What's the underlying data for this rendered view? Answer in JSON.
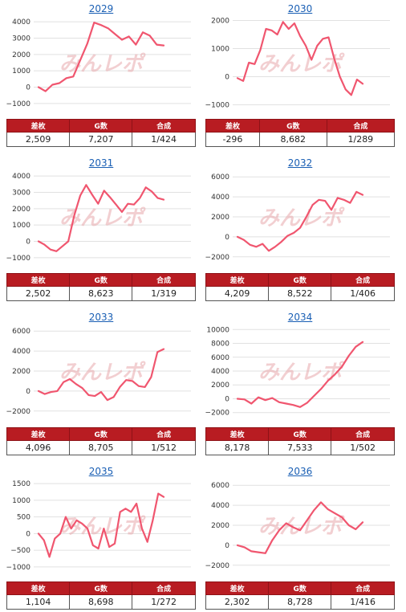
{
  "headers": {
    "sa": "差枚",
    "g": "G数",
    "gousei": "合成"
  },
  "watermark": "みんレポ",
  "colors": {
    "line": "#f0566f",
    "header_bg": "#b81c22"
  },
  "chart_data": [
    {
      "type": "line",
      "title": "2029",
      "yticks": [
        4000,
        3000,
        2000,
        1000,
        0,
        -1000
      ],
      "ylim": [
        -1250,
        4250
      ],
      "ytick_labels": [
        "4000",
        "3000",
        "2000",
        "1000",
        "0",
        "−1000"
      ],
      "values": [
        0,
        -250,
        150,
        250,
        550,
        650,
        1650,
        2650,
        3950,
        3800,
        3600,
        3250,
        2900,
        3100,
        2600,
        3350,
        3150,
        2600,
        2550
      ],
      "stats": {
        "sa": "2,509",
        "g": "7,207",
        "gousei": "1/424"
      }
    },
    {
      "type": "line",
      "title": "2030",
      "yticks": [
        2000,
        1000,
        0,
        -1000
      ],
      "ylim": [
        -1100,
        2100
      ],
      "ytick_labels": [
        "2000",
        "1000",
        "0",
        "−1000"
      ],
      "values": [
        -50,
        -150,
        500,
        450,
        950,
        1700,
        1650,
        1500,
        1950,
        1700,
        1900,
        1450,
        1100,
        600,
        1100,
        1350,
        1400,
        650,
        0,
        -450,
        -650,
        -100,
        -250
      ],
      "stats": {
        "sa": "-296",
        "g": "8,682",
        "gousei": "1/289"
      }
    },
    {
      "type": "line",
      "title": "2031",
      "yticks": [
        4000,
        3000,
        2000,
        1000,
        0,
        -1000
      ],
      "ylim": [
        -1250,
        4250
      ],
      "ytick_labels": [
        "4000",
        "3000",
        "2000",
        "1000",
        "0",
        "−1000"
      ],
      "values": [
        0,
        -200,
        -500,
        -600,
        -300,
        0,
        1600,
        2800,
        3450,
        2850,
        2300,
        3100,
        2700,
        2250,
        1800,
        2300,
        2250,
        2650,
        3300,
        3050,
        2650,
        2550
      ],
      "stats": {
        "sa": "2,502",
        "g": "8,623",
        "gousei": "1/319"
      }
    },
    {
      "type": "line",
      "title": "2032",
      "yticks": [
        6000,
        4000,
        2000,
        0,
        -2000
      ],
      "ylim": [
        -2500,
        6500
      ],
      "ytick_labels": [
        "6000",
        "4000",
        "2000",
        "0",
        "−2000"
      ],
      "values": [
        0,
        -300,
        -800,
        -1000,
        -700,
        -1400,
        -1000,
        -500,
        100,
        400,
        900,
        2000,
        3200,
        3700,
        3600,
        2700,
        3900,
        3700,
        3400,
        4500,
        4200
      ],
      "stats": {
        "sa": "4,209",
        "g": "8,522",
        "gousei": "1/406"
      }
    },
    {
      "type": "line",
      "title": "2033",
      "yticks": [
        6000,
        4000,
        2000,
        0,
        -2000
      ],
      "ylim": [
        -2500,
        6500
      ],
      "ytick_labels": [
        "6000",
        "4000",
        "2000",
        "0",
        "−2000"
      ],
      "values": [
        0,
        -300,
        -100,
        0,
        900,
        1200,
        700,
        300,
        -400,
        -500,
        -100,
        -900,
        -600,
        400,
        1100,
        1000,
        500,
        400,
        1400,
        3900,
        4200
      ],
      "stats": {
        "sa": "4,096",
        "g": "8,705",
        "gousei": "1/512"
      }
    },
    {
      "type": "line",
      "title": "2034",
      "yticks": [
        10000,
        8000,
        6000,
        4000,
        2000,
        0,
        -2000
      ],
      "ylim": [
        -2500,
        10500
      ],
      "ytick_labels": [
        "10000",
        "8000",
        "6000",
        "4000",
        "2000",
        "0",
        "−2000"
      ],
      "values": [
        0,
        -100,
        -700,
        200,
        -200,
        100,
        -500,
        -700,
        -900,
        -1200,
        -600,
        400,
        1400,
        2600,
        3500,
        4600,
        6200,
        7500,
        8200
      ],
      "stats": {
        "sa": "8,178",
        "g": "7,533",
        "gousei": "1/502"
      }
    },
    {
      "type": "line",
      "title": "2035",
      "yticks": [
        1500,
        1000,
        500,
        0,
        -500,
        -1000
      ],
      "ylim": [
        -1100,
        1600
      ],
      "ytick_labels": [
        "1500",
        "1000",
        "500",
        "0",
        "−500",
        "−1000"
      ],
      "values": [
        0,
        -200,
        -700,
        -150,
        0,
        500,
        150,
        400,
        300,
        150,
        -350,
        -450,
        150,
        -400,
        -300,
        650,
        750,
        650,
        900,
        150,
        -250,
        400,
        1200,
        1100
      ],
      "stats": {
        "sa": "1,104",
        "g": "8,698",
        "gousei": "1/272"
      }
    },
    {
      "type": "line",
      "title": "2036",
      "yticks": [
        6000,
        4000,
        2000,
        0,
        -2000
      ],
      "ylim": [
        -2500,
        6500
      ],
      "ytick_labels": [
        "6000",
        "4000",
        "2000",
        "0",
        "−2000"
      ],
      "values": [
        0,
        -200,
        -600,
        -700,
        -800,
        500,
        1500,
        2200,
        1800,
        1500,
        2500,
        3500,
        4300,
        3600,
        3200,
        2800,
        2000,
        1600,
        2300
      ],
      "stats": {
        "sa": "2,302",
        "g": "8,728",
        "gousei": "1/416"
      }
    }
  ]
}
